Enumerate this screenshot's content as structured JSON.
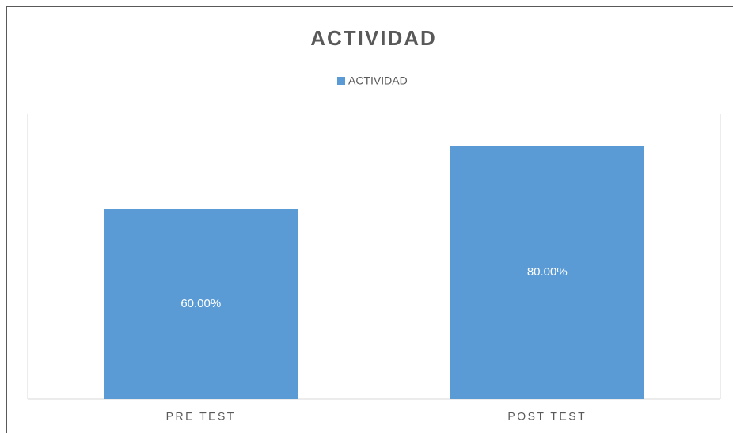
{
  "chart_data": {
    "type": "bar",
    "title": "ACTIVIDAD",
    "categories": [
      "PRE TEST",
      "POST TEST"
    ],
    "series": [
      {
        "name": "ACTIVIDAD",
        "color": "#5b9bd5",
        "values": [
          60,
          80
        ],
        "value_labels": [
          "60.00%",
          "80.00%"
        ]
      }
    ],
    "ylim": [
      0,
      90
    ],
    "legend": "top"
  }
}
